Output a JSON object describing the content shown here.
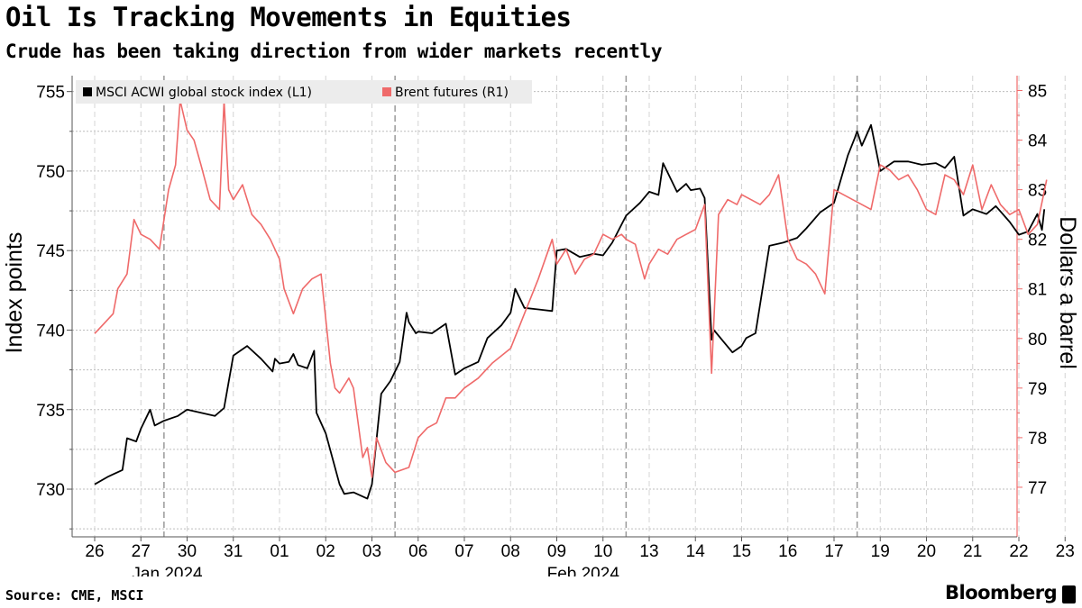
{
  "header": {
    "title": "Oil Is Tracking Movements in Equities",
    "subtitle": "Crude has been taking direction from wider markets recently"
  },
  "footer": {
    "source": "Source: CME, MSCI",
    "brand": "Bloomberg"
  },
  "colors": {
    "equity": "#000000",
    "brent": "#ef6a6a",
    "grid": "#bdbdbd",
    "right_axis": "#ef6a6a"
  },
  "chart_data": {
    "type": "line",
    "left_axis": {
      "label": "Index points",
      "ticks": [
        730,
        735,
        740,
        745,
        750,
        755
      ],
      "range": [
        727,
        756
      ]
    },
    "right_axis": {
      "label": "Dollars a barrel",
      "ticks": [
        77,
        78,
        79,
        80,
        81,
        82,
        83,
        84,
        85
      ],
      "range": [
        76,
        85.3
      ]
    },
    "x_ticks": [
      "26",
      "27",
      "30",
      "31",
      "01",
      "02",
      "03",
      "06",
      "07",
      "08",
      "09",
      "10",
      "13",
      "14",
      "15",
      "16",
      "17",
      "19",
      "20",
      "21",
      "22",
      "23"
    ],
    "x_tick_index": [
      0,
      1,
      2,
      3,
      4,
      5,
      6,
      7,
      8,
      9,
      10,
      11,
      12,
      13,
      14,
      15,
      16,
      17,
      18,
      19,
      20,
      21
    ],
    "week_separators": [
      2,
      7,
      12,
      17
    ],
    "month_labels": [
      {
        "label": "Jan 2024",
        "at": 2
      },
      {
        "label": "Feb 2024",
        "at": 11
      }
    ],
    "legend": [
      {
        "name": "MSCI ACWI global stock index (L1)",
        "color": "#000000"
      },
      {
        "name": "Brent futures (R1)",
        "color": "#ef6a6a"
      }
    ],
    "series": [
      {
        "name": "MSCI ACWI global stock index (L1)",
        "axis": "left",
        "color": "#000000",
        "x": [
          0,
          0.3,
          0.6,
          0.7,
          0.9,
          1.0,
          1.2,
          1.3,
          1.5,
          1.8,
          2.0,
          2.3,
          2.6,
          2.8,
          3.0,
          3.3,
          3.6,
          3.85,
          3.9,
          4.0,
          4.2,
          4.3,
          4.4,
          4.6,
          4.75,
          4.8,
          5.0,
          5.3,
          5.4,
          5.6,
          5.9,
          6.0,
          6.2,
          6.4,
          6.6,
          6.75,
          6.8,
          6.95,
          7.0,
          7.3,
          7.6,
          7.8,
          8.0,
          8.3,
          8.5,
          8.8,
          9.0,
          9.1,
          9.3,
          9.6,
          9.9,
          10.0,
          10.2,
          10.5,
          10.8,
          11.0,
          11.2,
          11.5,
          11.8,
          12.0,
          12.2,
          12.3,
          12.6,
          12.8,
          12.9,
          13.1,
          13.2,
          13.35,
          13.4,
          13.6,
          13.8,
          14.0,
          14.1,
          14.3,
          14.6,
          14.9,
          15.2,
          15.4,
          15.7,
          16.0,
          16.3,
          16.45,
          16.5,
          16.6,
          16.8,
          17.0,
          17.3,
          17.6,
          17.9,
          18.2,
          18.4,
          18.6,
          18.8,
          19.0,
          19.3,
          19.5,
          19.8,
          20.0,
          20.2,
          20.4,
          20.5,
          20.55
        ],
        "values": [
          730.3,
          730.8,
          731.2,
          733.2,
          733.0,
          733.8,
          735.0,
          734.0,
          734.3,
          734.6,
          735.0,
          734.8,
          734.6,
          735.1,
          738.4,
          739.0,
          738.2,
          737.4,
          738.2,
          737.9,
          738.0,
          738.5,
          737.8,
          737.6,
          738.7,
          734.8,
          733.5,
          730.3,
          729.7,
          729.8,
          729.4,
          730.3,
          736.0,
          736.8,
          738.0,
          741.1,
          740.5,
          739.8,
          739.9,
          739.8,
          740.4,
          737.2,
          737.6,
          738.0,
          739.5,
          740.3,
          741.1,
          742.6,
          741.4,
          741.3,
          741.2,
          745.0,
          745.1,
          744.6,
          744.8,
          744.7,
          745.5,
          747.2,
          748.0,
          748.7,
          748.5,
          750.5,
          748.7,
          749.2,
          748.8,
          748.9,
          748.3,
          739.4,
          740.0,
          739.3,
          738.6,
          739.0,
          739.5,
          739.8,
          745.3,
          745.5,
          745.8,
          746.4,
          747.4,
          748.0,
          751.0,
          752.1,
          752.5,
          751.6,
          752.9,
          750.0,
          750.6,
          750.6,
          750.4,
          750.5,
          750.2,
          750.9,
          747.2,
          747.6,
          747.3,
          747.8,
          746.8,
          746.0,
          746.2,
          747.3,
          746.3,
          747.6
        ]
      },
      {
        "name": "Brent futures (R1)",
        "axis": "right",
        "color": "#ef6a6a",
        "x": [
          0,
          0.2,
          0.4,
          0.5,
          0.7,
          0.85,
          1.0,
          1.2,
          1.4,
          1.6,
          1.75,
          1.85,
          2.0,
          2.15,
          2.3,
          2.5,
          2.7,
          2.8,
          2.9,
          3.0,
          3.2,
          3.4,
          3.6,
          3.8,
          4.0,
          4.1,
          4.3,
          4.5,
          4.7,
          4.9,
          5.1,
          5.2,
          5.3,
          5.5,
          5.6,
          5.8,
          5.9,
          6.0,
          6.1,
          6.3,
          6.5,
          6.8,
          7.0,
          7.2,
          7.4,
          7.6,
          7.8,
          8.0,
          8.3,
          8.6,
          9.0,
          9.3,
          9.6,
          9.9,
          10.0,
          10.2,
          10.4,
          10.6,
          10.8,
          11.0,
          11.2,
          11.4,
          11.5,
          11.7,
          11.9,
          12.0,
          12.2,
          12.4,
          12.6,
          12.8,
          13.0,
          13.2,
          13.35,
          13.5,
          13.7,
          13.9,
          14.0,
          14.2,
          14.4,
          14.6,
          14.8,
          15.0,
          15.2,
          15.4,
          15.6,
          15.8,
          16.0,
          16.2,
          16.4,
          16.6,
          16.8,
          17.0,
          17.2,
          17.4,
          17.6,
          17.8,
          18.0,
          18.2,
          18.4,
          18.6,
          18.8,
          19.0,
          19.2,
          19.4,
          19.6,
          19.8,
          20.0,
          20.2,
          20.4,
          20.6
        ],
        "values": [
          80.1,
          80.3,
          80.5,
          81.0,
          81.3,
          82.4,
          82.1,
          82.0,
          81.8,
          83.0,
          83.5,
          84.8,
          84.2,
          84.0,
          83.5,
          82.8,
          82.6,
          84.8,
          83.0,
          82.8,
          83.1,
          82.5,
          82.3,
          82.0,
          81.6,
          81.0,
          80.5,
          81.0,
          81.2,
          81.3,
          79.5,
          79.0,
          78.9,
          79.2,
          79.0,
          77.6,
          77.8,
          77.2,
          78.0,
          77.5,
          77.3,
          77.4,
          78.0,
          78.2,
          78.3,
          78.8,
          78.8,
          79.0,
          79.2,
          79.5,
          79.8,
          80.5,
          81.2,
          82.0,
          81.5,
          81.8,
          81.3,
          81.6,
          81.7,
          82.1,
          82.0,
          82.1,
          82.0,
          81.9,
          81.2,
          81.5,
          81.8,
          81.7,
          82.0,
          82.1,
          82.2,
          82.7,
          79.3,
          82.5,
          82.8,
          82.7,
          82.9,
          82.8,
          82.7,
          82.9,
          83.3,
          82.0,
          81.6,
          81.5,
          81.3,
          80.9,
          83.0,
          82.9,
          82.8,
          82.7,
          82.6,
          83.5,
          83.4,
          83.2,
          83.3,
          83.0,
          82.6,
          82.5,
          83.3,
          83.2,
          82.9,
          83.5,
          82.6,
          83.1,
          82.7,
          82.5,
          82.6,
          82.1,
          82.3,
          83.2
        ]
      }
    ]
  }
}
